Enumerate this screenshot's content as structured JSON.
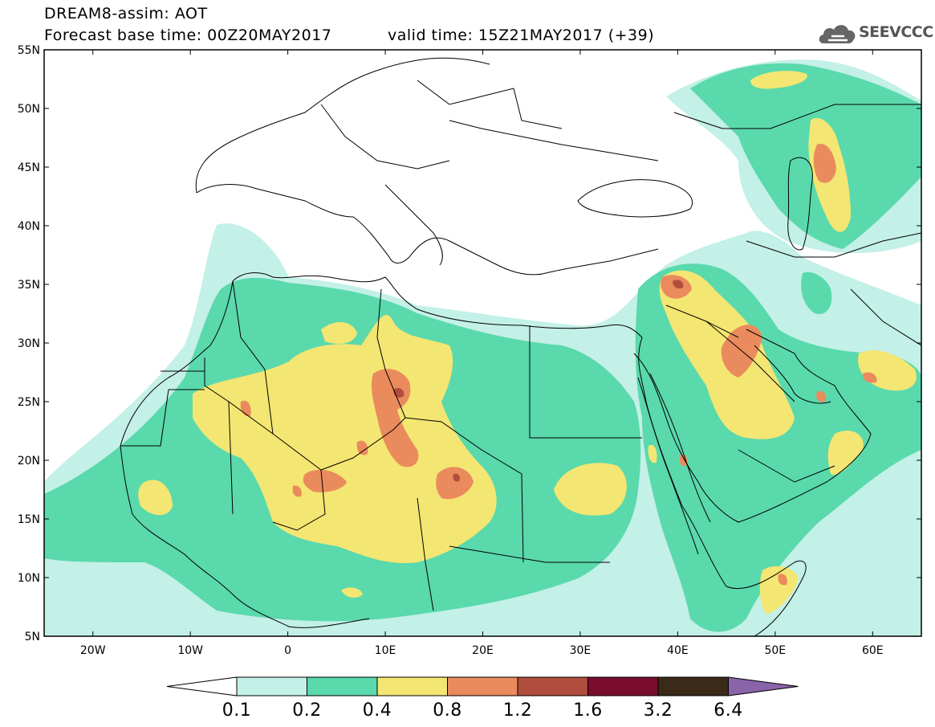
{
  "header": {
    "title": "DREAM8-assim: AOT",
    "base_time": "Forecast base time: 00Z20MAY2017",
    "valid_time": "valid time: 15Z21MAY2017 (+39)"
  },
  "logo": {
    "text": "SEEVCCC",
    "icon": "cloud-icon"
  },
  "map": {
    "lon_range": [
      -25,
      65
    ],
    "lat_range": [
      5,
      55
    ],
    "lon_ticks": [
      "20W",
      "10W",
      "0",
      "10E",
      "20E",
      "30E",
      "40E",
      "50E",
      "60E"
    ],
    "lat_ticks": [
      "55N",
      "50N",
      "45N",
      "40N",
      "35N",
      "30N",
      "25N",
      "20N",
      "15N",
      "10N",
      "5N"
    ]
  },
  "colorbar": {
    "labels": [
      "0.1",
      "0.2",
      "0.4",
      "0.8",
      "1.2",
      "1.6",
      "3.2",
      "6.4"
    ],
    "colors": [
      "#ffffff",
      "#c3f0e7",
      "#5ad9ac",
      "#f4e672",
      "#ea8b5d",
      "#b04d3c",
      "#7a0d2d",
      "#3b2a18",
      "#8a64a8"
    ]
  }
}
